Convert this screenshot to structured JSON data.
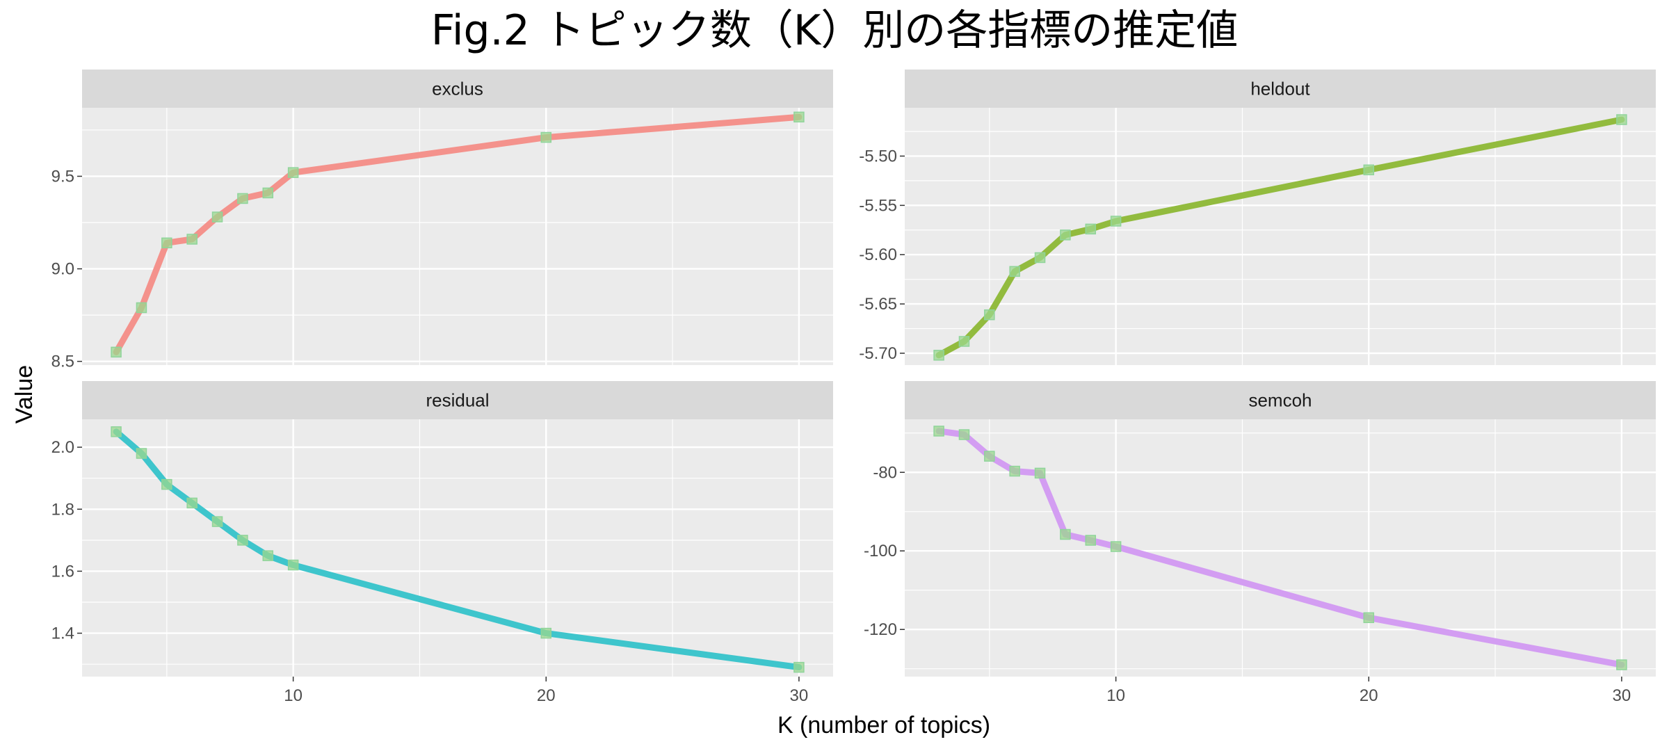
{
  "title": "Fig.2 トピック数（K）別の各指標の推定値",
  "xlabel": "K (number of topics)",
  "ylabel": "Value",
  "colors": {
    "panel_background": "#ebebeb",
    "strip_background": "#d9d9d9",
    "grid": "#ffffff",
    "point_fill": "#9bd78e",
    "point_stroke": "#8fd49a"
  },
  "chart_data": [
    {
      "type": "line",
      "facet": "exclus",
      "color": "#f4928c",
      "x": [
        3,
        4,
        5,
        6,
        7,
        8,
        9,
        10,
        20,
        30
      ],
      "values": [
        8.55,
        8.79,
        9.14,
        9.16,
        9.28,
        9.38,
        9.41,
        9.52,
        9.71,
        9.82
      ],
      "ylim": [
        8.48,
        9.87
      ],
      "yticks": [
        8.5,
        9.0,
        9.5
      ],
      "ytick_labels": [
        "8.5",
        "9.0",
        "9.5"
      ],
      "xlim": [
        1.65,
        31.35
      ],
      "xticks": [
        10,
        20,
        30
      ],
      "xtick_labels": [
        "10",
        "20",
        "30"
      ],
      "grid": true
    },
    {
      "type": "line",
      "facet": "heldout",
      "color": "#92bb3e",
      "x": [
        3,
        4,
        5,
        6,
        7,
        8,
        9,
        10,
        20,
        30
      ],
      "values": [
        -5.702,
        -5.688,
        -5.661,
        -5.617,
        -5.603,
        -5.58,
        -5.574,
        -5.566,
        -5.514,
        -5.463
      ],
      "ylim": [
        -5.712,
        -5.451
      ],
      "yticks": [
        -5.7,
        -5.65,
        -5.6,
        -5.55,
        -5.5
      ],
      "ytick_labels": [
        "-5.70",
        "-5.65",
        "-5.60",
        "-5.55",
        "-5.50"
      ],
      "xlim": [
        1.65,
        31.35
      ],
      "xticks": [
        10,
        20,
        30
      ],
      "xtick_labels": [
        "10",
        "20",
        "30"
      ],
      "grid": true
    },
    {
      "type": "line",
      "facet": "residual",
      "color": "#3ec5cc",
      "x": [
        3,
        4,
        5,
        6,
        7,
        8,
        9,
        10,
        20,
        30
      ],
      "values": [
        2.05,
        1.98,
        1.88,
        1.82,
        1.76,
        1.7,
        1.65,
        1.62,
        1.4,
        1.29
      ],
      "ylim": [
        1.26,
        2.09
      ],
      "yticks": [
        1.4,
        1.6,
        1.8,
        2.0
      ],
      "ytick_labels": [
        "1.4",
        "1.6",
        "1.8",
        "2.0"
      ],
      "xlim": [
        1.65,
        31.35
      ],
      "xticks": [
        10,
        20,
        30
      ],
      "xtick_labels": [
        "10",
        "20",
        "30"
      ],
      "grid": true
    },
    {
      "type": "line",
      "facet": "semcoh",
      "color": "#d39df2",
      "x": [
        3,
        4,
        5,
        6,
        7,
        8,
        9,
        10,
        20,
        30
      ],
      "values": [
        -69.5,
        -70.4,
        -75.9,
        -79.7,
        -80.2,
        -95.8,
        -97.3,
        -98.9,
        -117.0,
        -129.0
      ],
      "ylim": [
        -132.0,
        -66.5
      ],
      "yticks": [
        -120,
        -100,
        -80
      ],
      "ytick_labels": [
        "-120",
        "-100",
        "-80"
      ],
      "xlim": [
        1.65,
        31.35
      ],
      "xticks": [
        10,
        20,
        30
      ],
      "xtick_labels": [
        "10",
        "20",
        "30"
      ],
      "grid": true
    }
  ]
}
